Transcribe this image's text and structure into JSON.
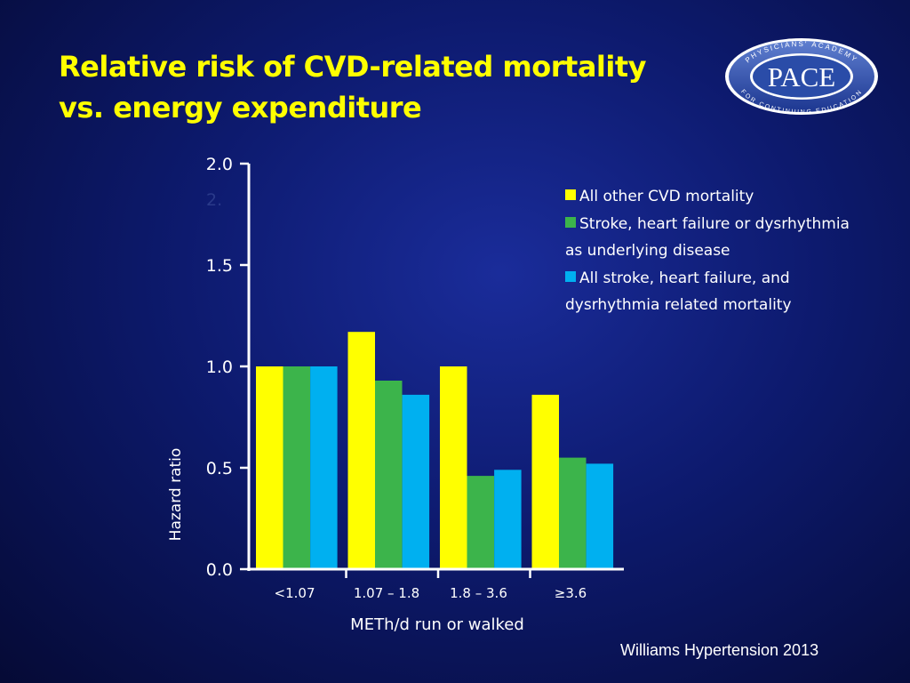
{
  "slide": {
    "title_line1": "Relative risk of CVD-related mortality",
    "title_line2": "vs. energy expenditure",
    "citation": "Williams Hypertension 2013"
  },
  "logo": {
    "main_text": "PACE",
    "ring_top": "PHYSICIANS' ACADEMY",
    "ring_bottom": "FOR CONTINUING EDUCATION"
  },
  "chart_data": {
    "type": "bar",
    "categories": [
      "<1.07",
      "1.07 – 1.8",
      "1.8 – 3.6",
      "≥3.6"
    ],
    "series": [
      {
        "name": "All other CVD mortality",
        "values": [
          1.0,
          1.17,
          1.0,
          0.86
        ]
      },
      {
        "name": "Stroke, heart failure or dysrhythmia as underlying disease",
        "values": [
          1.0,
          0.93,
          0.46,
          0.55
        ]
      },
      {
        "name": "All stroke, heart failure, and dysrhythmia related mortality",
        "values": [
          1.0,
          0.86,
          0.49,
          0.52
        ]
      }
    ],
    "xlabel": "METh/d run or walked",
    "ylabel": "Hazard ratio",
    "ylim": [
      0,
      2.0
    ],
    "yticks": [
      0.0,
      0.5,
      1.0,
      1.5,
      2.0
    ],
    "ytick_labels": [
      "0.0",
      "0.5",
      "1.0",
      "1.5",
      "2.0"
    ],
    "stray_label": "2.",
    "legend_position": "top-right",
    "grid": false,
    "colors": [
      "#ffff00",
      "#3cb44b",
      "#00b0f0"
    ]
  }
}
